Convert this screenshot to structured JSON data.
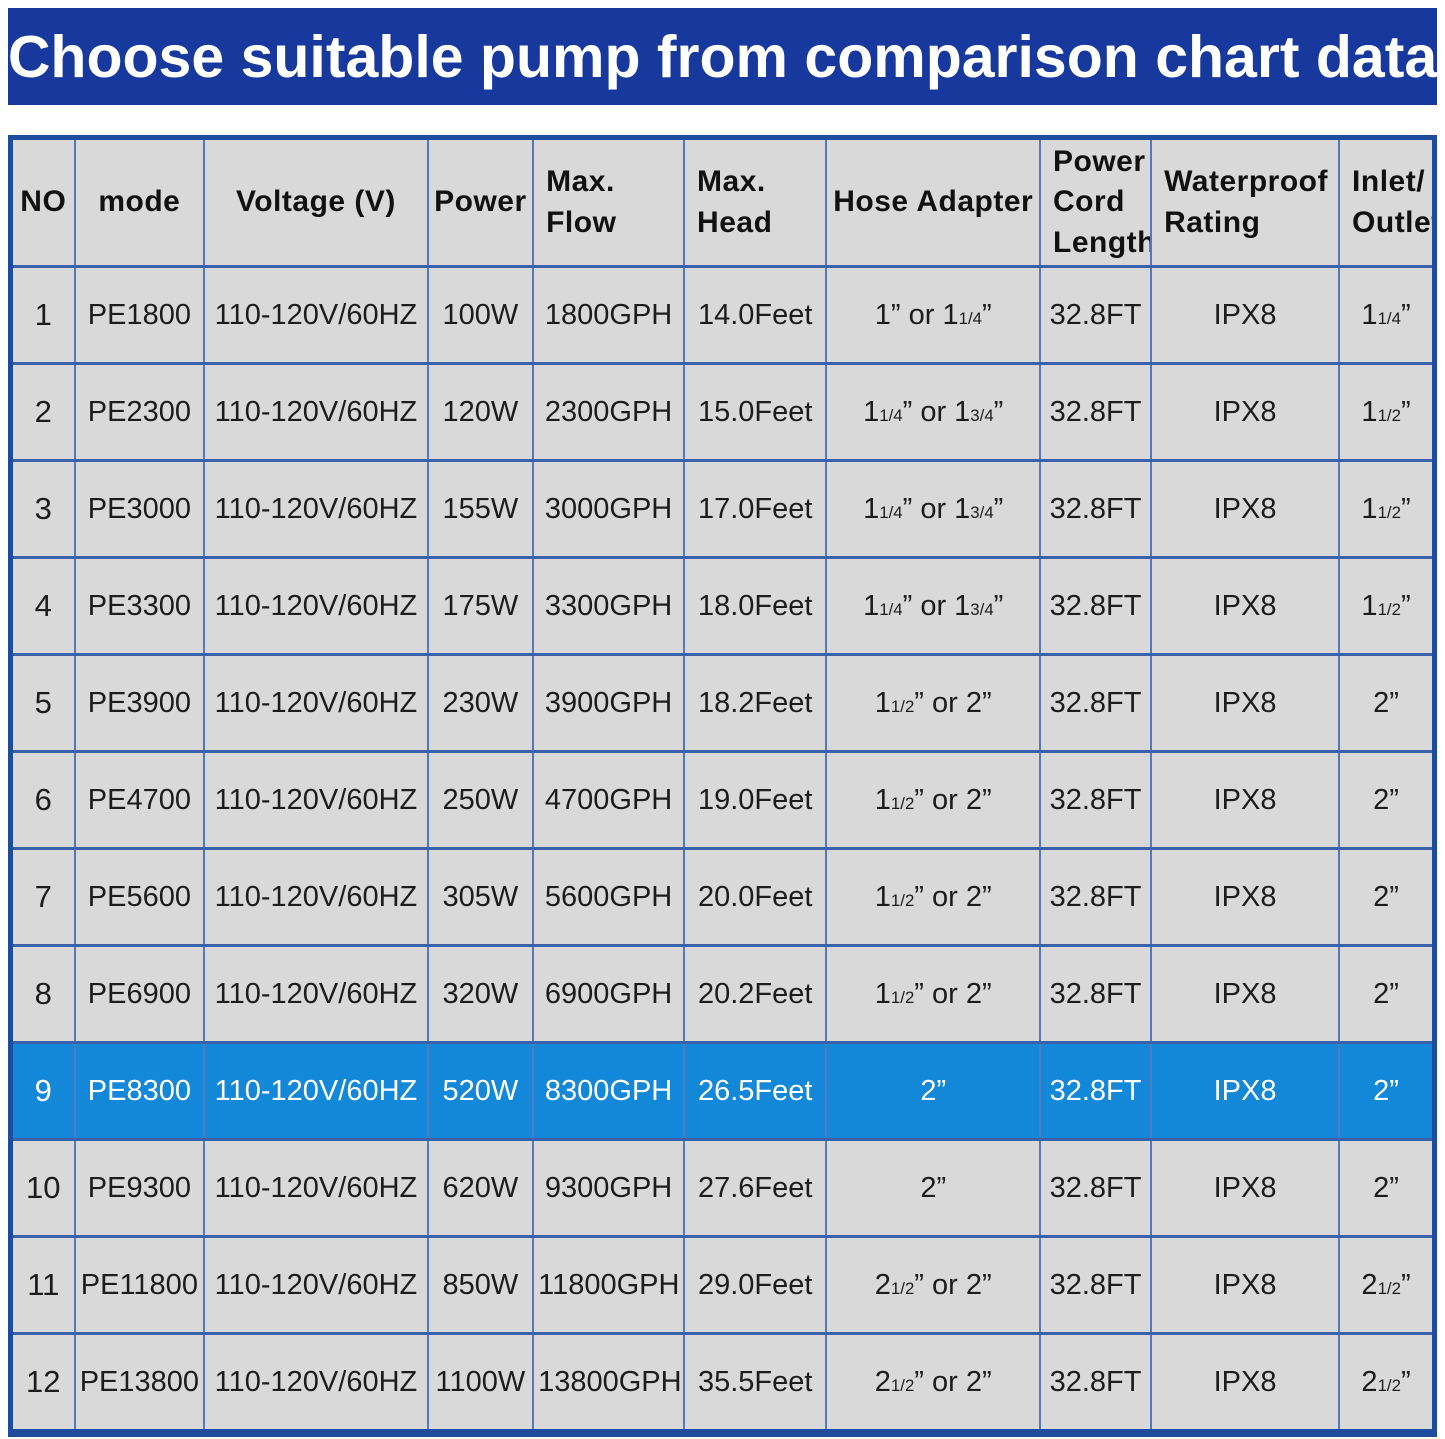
{
  "title": "Choose suitable pump from comparison chart data",
  "colors": {
    "banner_bg": "#17399e",
    "banner_text": "#ffffff",
    "cell_bg": "#d9d9d9",
    "highlight_row_bg": "#1387d8",
    "highlight_row_text": "#ffffff",
    "grid_border": "#5579bd",
    "row_border": "#3a62ab",
    "outer_border": "#1f4d9e"
  },
  "table": {
    "columns": [
      {
        "key": "no",
        "label": "NO",
        "align": "center"
      },
      {
        "key": "model",
        "label": "mode",
        "align": "center"
      },
      {
        "key": "voltage",
        "label": "Voltage (V)",
        "align": "center"
      },
      {
        "key": "power",
        "label": "Power",
        "align": "center"
      },
      {
        "key": "max_flow",
        "label": "Max.\nFlow",
        "align": "left"
      },
      {
        "key": "max_head",
        "label": "Max.\nHead",
        "align": "left"
      },
      {
        "key": "hose_adapter",
        "label": "Hose Adapter",
        "align": "center"
      },
      {
        "key": "power_cord_length",
        "label": "Power\nCord\nLength",
        "align": "left"
      },
      {
        "key": "waterproof_rating",
        "label": "Waterproof\nRating",
        "align": "left"
      },
      {
        "key": "inlet_outlet",
        "label": "Inlet/\nOutlet",
        "align": "left"
      }
    ],
    "rows": [
      {
        "no": "1",
        "model": "PE1800",
        "voltage": "110-120V/60HZ",
        "power": "100W",
        "max_flow": "1800GPH",
        "max_head": "14.0Feet",
        "hose_adapter": "1” or 1~1/4~”",
        "power_cord_length": "32.8FT",
        "waterproof_rating": "IPX8",
        "inlet_outlet": "1~1/4~”",
        "highlight": false
      },
      {
        "no": "2",
        "model": "PE2300",
        "voltage": "110-120V/60HZ",
        "power": "120W",
        "max_flow": "2300GPH",
        "max_head": "15.0Feet",
        "hose_adapter": "1~1/4~” or 1~3/4~”",
        "power_cord_length": "32.8FT",
        "waterproof_rating": "IPX8",
        "inlet_outlet": "1~1/2~”",
        "highlight": false
      },
      {
        "no": "3",
        "model": "PE3000",
        "voltage": "110-120V/60HZ",
        "power": "155W",
        "max_flow": "3000GPH",
        "max_head": "17.0Feet",
        "hose_adapter": "1~1/4~” or 1~3/4~”",
        "power_cord_length": "32.8FT",
        "waterproof_rating": "IPX8",
        "inlet_outlet": "1~1/2~”",
        "highlight": false
      },
      {
        "no": "4",
        "model": "PE3300",
        "voltage": "110-120V/60HZ",
        "power": "175W",
        "max_flow": "3300GPH",
        "max_head": "18.0Feet",
        "hose_adapter": "1~1/4~” or 1~3/4~”",
        "power_cord_length": "32.8FT",
        "waterproof_rating": "IPX8",
        "inlet_outlet": "1~1/2~”",
        "highlight": false
      },
      {
        "no": "5",
        "model": "PE3900",
        "voltage": "110-120V/60HZ",
        "power": "230W",
        "max_flow": "3900GPH",
        "max_head": "18.2Feet",
        "hose_adapter": "1~1/2~” or 2”",
        "power_cord_length": "32.8FT",
        "waterproof_rating": "IPX8",
        "inlet_outlet": "2”",
        "highlight": false
      },
      {
        "no": "6",
        "model": "PE4700",
        "voltage": "110-120V/60HZ",
        "power": "250W",
        "max_flow": "4700GPH",
        "max_head": "19.0Feet",
        "hose_adapter": "1~1/2~” or 2”",
        "power_cord_length": "32.8FT",
        "waterproof_rating": "IPX8",
        "inlet_outlet": "2”",
        "highlight": false
      },
      {
        "no": "7",
        "model": "PE5600",
        "voltage": "110-120V/60HZ",
        "power": "305W",
        "max_flow": "5600GPH",
        "max_head": "20.0Feet",
        "hose_adapter": "1~1/2~” or 2”",
        "power_cord_length": "32.8FT",
        "waterproof_rating": "IPX8",
        "inlet_outlet": "2”",
        "highlight": false
      },
      {
        "no": "8",
        "model": "PE6900",
        "voltage": "110-120V/60HZ",
        "power": "320W",
        "max_flow": "6900GPH",
        "max_head": "20.2Feet",
        "hose_adapter": "1~1/2~” or 2”",
        "power_cord_length": "32.8FT",
        "waterproof_rating": "IPX8",
        "inlet_outlet": "2”",
        "highlight": false
      },
      {
        "no": "9",
        "model": "PE8300",
        "voltage": "110-120V/60HZ",
        "power": "520W",
        "max_flow": "8300GPH",
        "max_head": "26.5Feet",
        "hose_adapter": "2”",
        "power_cord_length": "32.8FT",
        "waterproof_rating": "IPX8",
        "inlet_outlet": "2”",
        "highlight": true
      },
      {
        "no": "10",
        "model": "PE9300",
        "voltage": "110-120V/60HZ",
        "power": "620W",
        "max_flow": "9300GPH",
        "max_head": "27.6Feet",
        "hose_adapter": "2”",
        "power_cord_length": "32.8FT",
        "waterproof_rating": "IPX8",
        "inlet_outlet": "2”",
        "highlight": false
      },
      {
        "no": "11",
        "model": "PE11800",
        "voltage": "110-120V/60HZ",
        "power": "850W",
        "max_flow": "11800GPH",
        "max_head": "29.0Feet",
        "hose_adapter": "2~1/2~” or 2”",
        "power_cord_length": "32.8FT",
        "waterproof_rating": "IPX8",
        "inlet_outlet": "2~1/2~”",
        "highlight": false
      },
      {
        "no": "12",
        "model": "PE13800",
        "voltage": "110-120V/60HZ",
        "power": "1100W",
        "max_flow": "13800GPH",
        "max_head": "35.5Feet",
        "hose_adapter": "2~1/2~” or 2”",
        "power_cord_length": "32.8FT",
        "waterproof_rating": "IPX8",
        "inlet_outlet": "2~1/2~”",
        "highlight": false
      }
    ]
  },
  "chart_data": {
    "type": "table",
    "title": "Choose suitable pump from comparison chart data",
    "columns": [
      "NO",
      "mode",
      "Voltage (V)",
      "Power",
      "Max. Flow",
      "Max. Head",
      "Hose Adapter",
      "Power Cord Length",
      "Waterproof Rating",
      "Inlet/Outlet"
    ],
    "rows": [
      [
        "1",
        "PE1800",
        "110-120V/60HZ",
        "100W",
        "1800GPH",
        "14.0Feet",
        "1\" or 1 1/4\"",
        "32.8FT",
        "IPX8",
        "1 1/4\""
      ],
      [
        "2",
        "PE2300",
        "110-120V/60HZ",
        "120W",
        "2300GPH",
        "15.0Feet",
        "1 1/4\" or 1 3/4\"",
        "32.8FT",
        "IPX8",
        "1 1/2\""
      ],
      [
        "3",
        "PE3000",
        "110-120V/60HZ",
        "155W",
        "3000GPH",
        "17.0Feet",
        "1 1/4\" or 1 3/4\"",
        "32.8FT",
        "IPX8",
        "1 1/2\""
      ],
      [
        "4",
        "PE3300",
        "110-120V/60HZ",
        "175W",
        "3300GPH",
        "18.0Feet",
        "1 1/4\" or 1 3/4\"",
        "32.8FT",
        "IPX8",
        "1 1/2\""
      ],
      [
        "5",
        "PE3900",
        "110-120V/60HZ",
        "230W",
        "3900GPH",
        "18.2Feet",
        "1 1/2\" or 2\"",
        "32.8FT",
        "IPX8",
        "2\""
      ],
      [
        "6",
        "PE4700",
        "110-120V/60HZ",
        "250W",
        "4700GPH",
        "19.0Feet",
        "1 1/2\" or 2\"",
        "32.8FT",
        "IPX8",
        "2\""
      ],
      [
        "7",
        "PE5600",
        "110-120V/60HZ",
        "305W",
        "5600GPH",
        "20.0Feet",
        "1 1/2\" or 2\"",
        "32.8FT",
        "IPX8",
        "2\""
      ],
      [
        "8",
        "PE6900",
        "110-120V/60HZ",
        "320W",
        "6900GPH",
        "20.2Feet",
        "1 1/2\" or 2\"",
        "32.8FT",
        "IPX8",
        "2\""
      ],
      [
        "9",
        "PE8300",
        "110-120V/60HZ",
        "520W",
        "8300GPH",
        "26.5Feet",
        "2\"",
        "32.8FT",
        "IPX8",
        "2\""
      ],
      [
        "10",
        "PE9300",
        "110-120V/60HZ",
        "620W",
        "9300GPH",
        "27.6Feet",
        "2\"",
        "32.8FT",
        "IPX8",
        "2\""
      ],
      [
        "11",
        "PE11800",
        "110-120V/60HZ",
        "850W",
        "11800GPH",
        "29.0Feet",
        "2 1/2\" or 2\"",
        "32.8FT",
        "IPX8",
        "2 1/2\""
      ],
      [
        "12",
        "PE13800",
        "110-120V/60HZ",
        "1100W",
        "13800GPH",
        "35.5Feet",
        "2 1/2\" or 2\"",
        "32.8FT",
        "IPX8",
        "2 1/2\""
      ]
    ],
    "highlighted_row_model": "PE8300",
    "layout_hints": {
      "grid": true,
      "header_row": true,
      "highlight_color": "#1387d8"
    }
  }
}
